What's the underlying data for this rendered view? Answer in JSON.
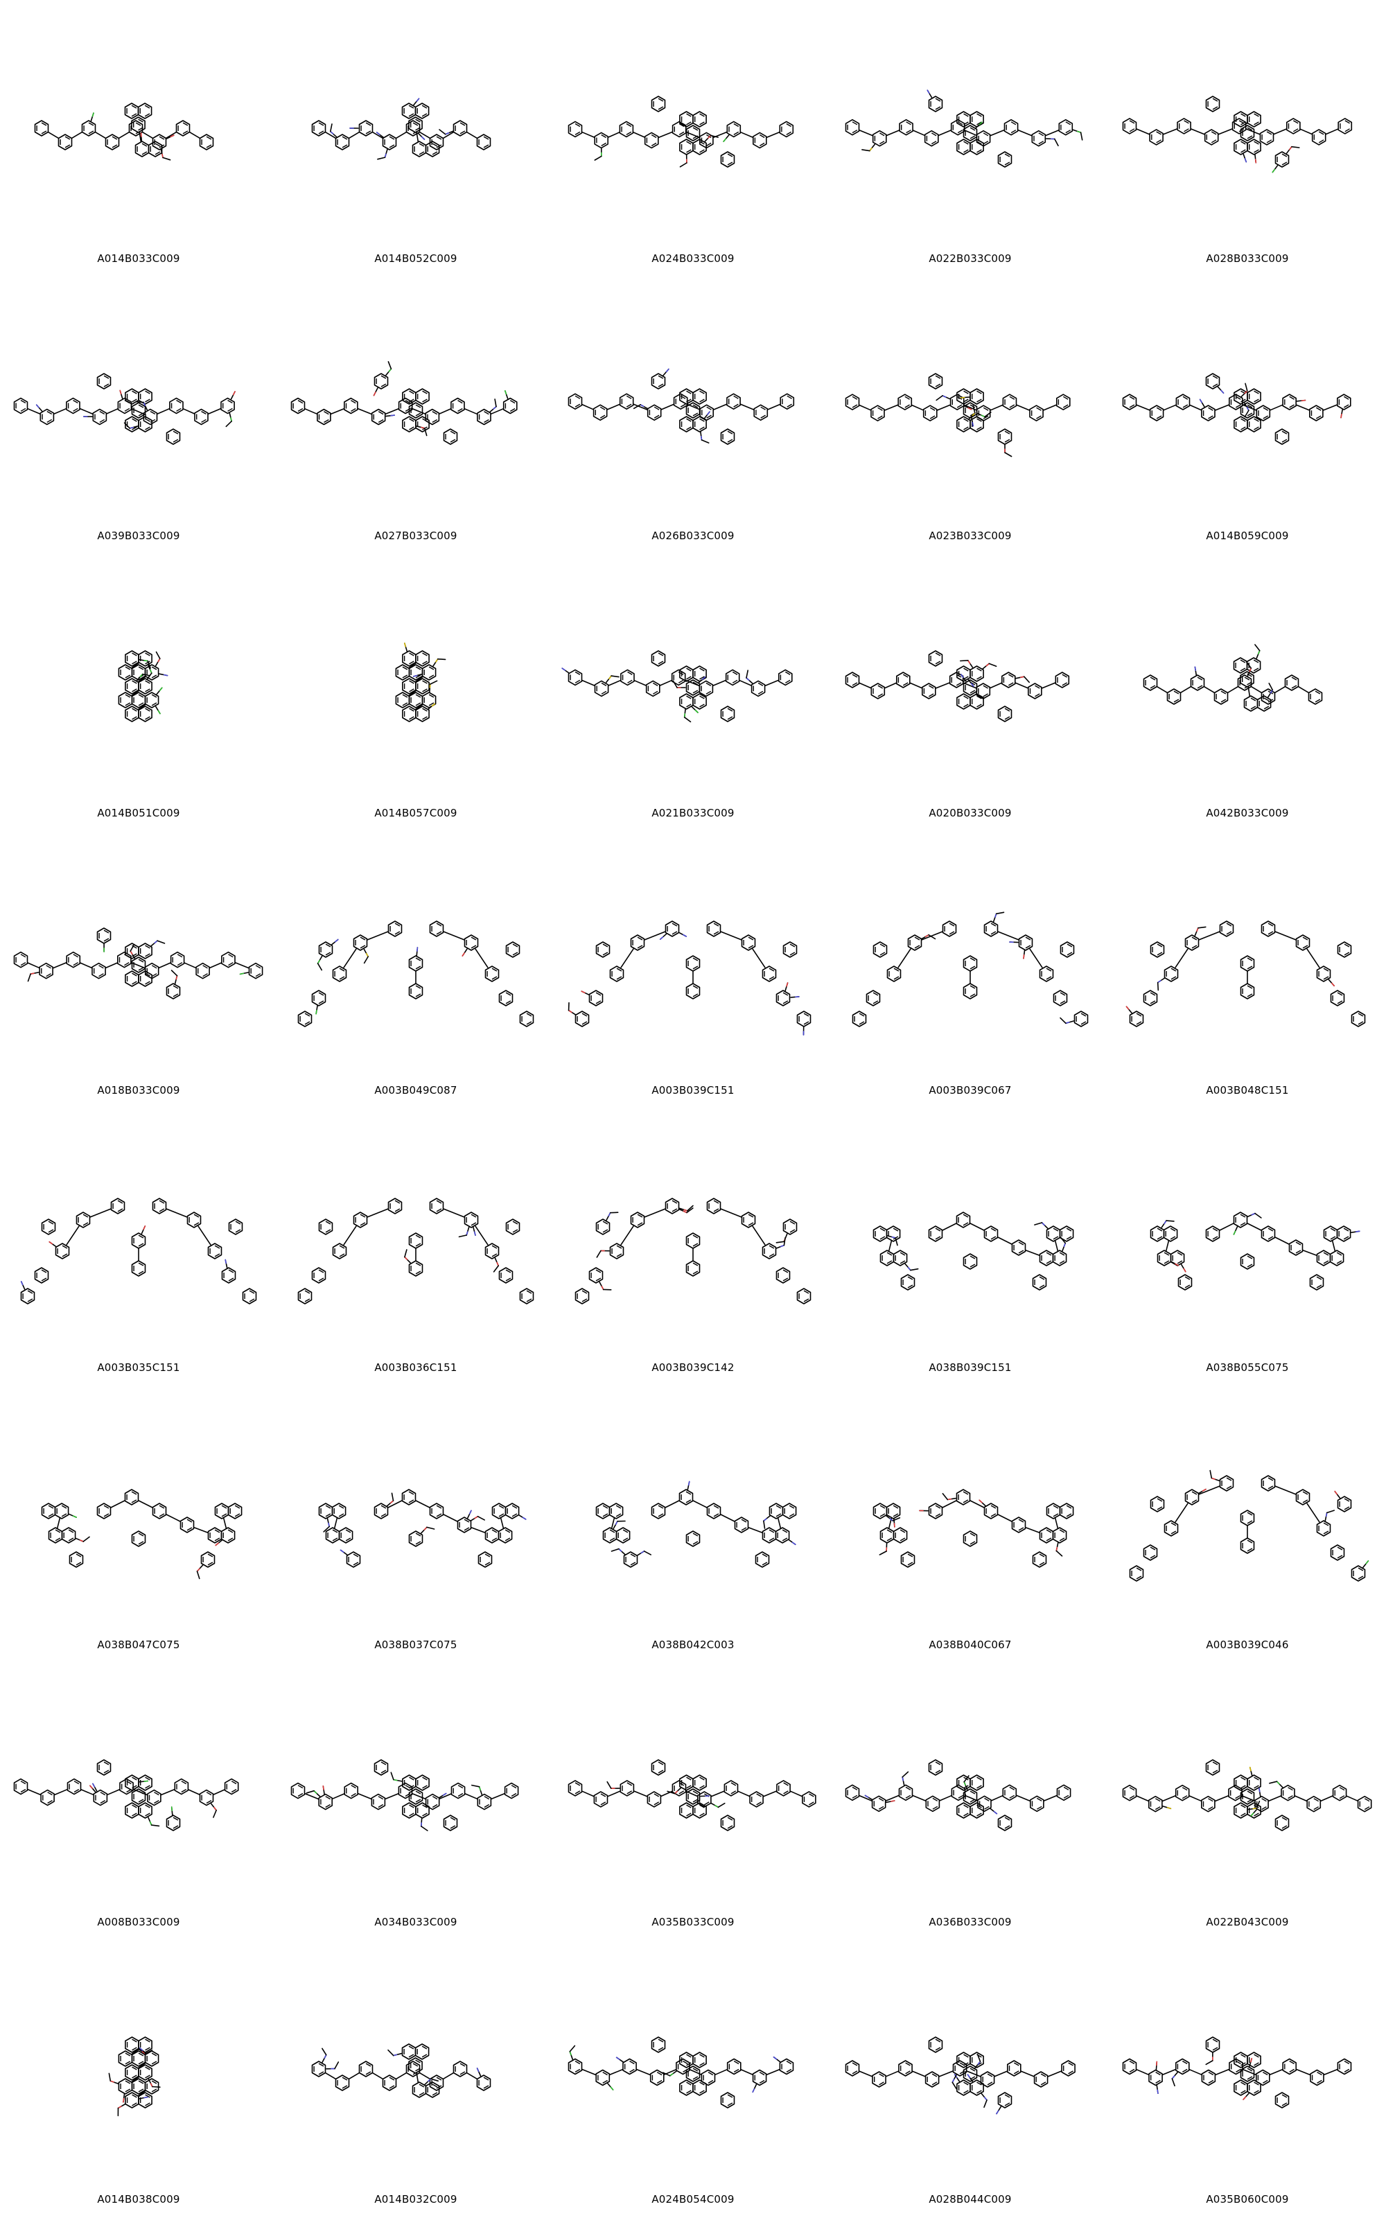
{
  "molecules": [
    {
      "id": "A014B033C009",
      "motif": "anthracene-fused",
      "accent": [
        "#4a4ad6",
        "#2fbf2f",
        "#e03a3a"
      ]
    },
    {
      "id": "A014B052C009",
      "motif": "anthracene-fused",
      "accent": [
        "#4a4ad6"
      ]
    },
    {
      "id": "A024B033C009",
      "motif": "long-chain",
      "accent": [
        "#4a4ad6",
        "#2fbf2f",
        "#e03a3a"
      ]
    },
    {
      "id": "A022B033C009",
      "motif": "long-chain",
      "accent": [
        "#4a4ad6",
        "#2fbf2f",
        "#d4b800",
        "#e03a3a"
      ]
    },
    {
      "id": "A028B033C009",
      "motif": "long-chain",
      "accent": [
        "#4a4ad6",
        "#2fbf2f",
        "#e03a3a"
      ]
    },
    {
      "id": "A039B033C009",
      "motif": "long-chain",
      "accent": [
        "#4a4ad6",
        "#2fbf2f",
        "#e03a3a"
      ]
    },
    {
      "id": "A027B033C009",
      "motif": "long-chain",
      "accent": [
        "#4a4ad6",
        "#2fbf2f",
        "#e03a3a"
      ]
    },
    {
      "id": "A026B033C009",
      "motif": "long-chain",
      "accent": [
        "#4a4ad6",
        "#2fbf2f",
        "#e03a3a"
      ]
    },
    {
      "id": "A023B033C009",
      "motif": "long-chain",
      "accent": [
        "#4a4ad6",
        "#2fbf2f",
        "#d4b800",
        "#e03a3a"
      ]
    },
    {
      "id": "A014B059C009",
      "motif": "long-chain",
      "accent": [
        "#4a4ad6",
        "#e03a3a"
      ]
    },
    {
      "id": "A014B051C009",
      "motif": "compact",
      "accent": [
        "#4a4ad6",
        "#2fbf2f",
        "#e03a3a"
      ]
    },
    {
      "id": "A014B057C009",
      "motif": "compact",
      "accent": [
        "#4a4ad6",
        "#d4b800"
      ]
    },
    {
      "id": "A021B033C009",
      "motif": "long-chain",
      "accent": [
        "#4a4ad6",
        "#2fbf2f",
        "#d4b800",
        "#e03a3a"
      ]
    },
    {
      "id": "A020B033C009",
      "motif": "long-chain",
      "accent": [
        "#4a4ad6",
        "#2fbf2f",
        "#e03a3a"
      ]
    },
    {
      "id": "A042B033C009",
      "motif": "anthracene-fused",
      "accent": [
        "#4a4ad6",
        "#2fbf2f",
        "#e03a3a"
      ]
    },
    {
      "id": "A018B033C009",
      "motif": "long-chain",
      "accent": [
        "#4a4ad6",
        "#2fbf2f",
        "#e03a3a"
      ]
    },
    {
      "id": "A003B049C087",
      "motif": "triarylamine",
      "accent": [
        "#4a4ad6",
        "#d4b800",
        "#2fbf2f",
        "#e03a3a"
      ]
    },
    {
      "id": "A003B039C151",
      "motif": "triarylamine",
      "accent": [
        "#4a4ad6",
        "#e03a3a"
      ]
    },
    {
      "id": "A003B039C067",
      "motif": "triarylamine",
      "accent": [
        "#4a4ad6",
        "#e03a3a"
      ]
    },
    {
      "id": "A003B048C151",
      "motif": "triarylamine",
      "accent": [
        "#4a4ad6",
        "#e03a3a"
      ]
    },
    {
      "id": "A003B035C151",
      "motif": "triarylamine",
      "accent": [
        "#4a4ad6",
        "#e03a3a"
      ]
    },
    {
      "id": "A003B036C151",
      "motif": "triarylamine",
      "accent": [
        "#4a4ad6",
        "#e03a3a"
      ]
    },
    {
      "id": "A003B039C142",
      "motif": "triarylamine",
      "accent": [
        "#4a4ad6",
        "#e03a3a"
      ]
    },
    {
      "id": "A038B039C151",
      "motif": "carbazole",
      "accent": [
        "#4a4ad6"
      ]
    },
    {
      "id": "A038B055C075",
      "motif": "carbazole",
      "accent": [
        "#4a4ad6",
        "#2fbf2f",
        "#e03a3a"
      ]
    },
    {
      "id": "A038B047C075",
      "motif": "carbazole",
      "accent": [
        "#4a4ad6",
        "#2fbf2f",
        "#e03a3a"
      ]
    },
    {
      "id": "A038B037C075",
      "motif": "carbazole",
      "accent": [
        "#4a4ad6",
        "#e03a3a"
      ]
    },
    {
      "id": "A038B042C003",
      "motif": "carbazole",
      "accent": [
        "#4a4ad6"
      ]
    },
    {
      "id": "A038B040C067",
      "motif": "carbazole",
      "accent": [
        "#4a4ad6",
        "#e03a3a"
      ]
    },
    {
      "id": "A003B039C046",
      "motif": "triarylamine",
      "accent": [
        "#4a4ad6",
        "#2fbf2f",
        "#e03a3a"
      ]
    },
    {
      "id": "A008B033C009",
      "motif": "long-chain",
      "accent": [
        "#4a4ad6",
        "#2fbf2f",
        "#e03a3a"
      ]
    },
    {
      "id": "A034B033C009",
      "motif": "long-chain",
      "accent": [
        "#4a4ad6",
        "#2fbf2f",
        "#e03a3a"
      ]
    },
    {
      "id": "A035B033C009",
      "motif": "long-chain",
      "accent": [
        "#4a4ad6",
        "#2fbf2f",
        "#e03a3a"
      ]
    },
    {
      "id": "A036B033C009",
      "motif": "long-chain",
      "accent": [
        "#4a4ad6",
        "#2fbf2f",
        "#e03a3a"
      ]
    },
    {
      "id": "A022B043C009",
      "motif": "long-chain",
      "accent": [
        "#4a4ad6",
        "#2fbf2f",
        "#d4b800"
      ]
    },
    {
      "id": "A014B038C009",
      "motif": "compact",
      "accent": [
        "#4a4ad6",
        "#e03a3a"
      ]
    },
    {
      "id": "A014B032C009",
      "motif": "anthracene-fused",
      "accent": [
        "#4a4ad6"
      ]
    },
    {
      "id": "A024B054C009",
      "motif": "long-chain",
      "accent": [
        "#4a4ad6",
        "#2fbf2f"
      ]
    },
    {
      "id": "A028B044C009",
      "motif": "long-chain",
      "accent": [
        "#4a4ad6"
      ]
    },
    {
      "id": "A035B060C009",
      "motif": "long-chain",
      "accent": [
        "#4a4ad6",
        "#e03a3a"
      ]
    }
  ]
}
